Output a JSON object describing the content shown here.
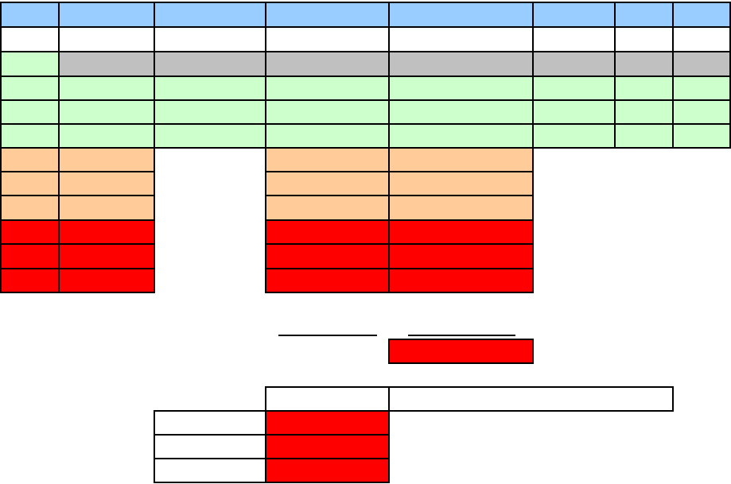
{
  "colors": {
    "header": "#99ccff",
    "white": "#ffffff",
    "gray": "#c0c0c0",
    "green": "#ccffcc",
    "orange": "#ffcc99",
    "red": "#ff0000"
  },
  "sheet": {
    "rows": [
      {
        "fill": "header",
        "cells": [
          "",
          "",
          "",
          "",
          "",
          "",
          "",
          ""
        ]
      },
      {
        "fill": "white",
        "cells": [
          "",
          "",
          "",
          "",
          "",
          "",
          "",
          ""
        ]
      },
      {
        "fill": "gray",
        "first_fill": "green",
        "cells": [
          "",
          "",
          "",
          "",
          "",
          "",
          "",
          ""
        ]
      },
      {
        "fill": "green",
        "cells": [
          "",
          "",
          "",
          "",
          "",
          "",
          "",
          ""
        ]
      },
      {
        "fill": "green",
        "cells": [
          "",
          "",
          "",
          "",
          "",
          "",
          "",
          ""
        ]
      },
      {
        "fill": "green",
        "cells": [
          "",
          "",
          "",
          "",
          "",
          "",
          "",
          ""
        ]
      },
      {
        "fill": "orange",
        "cells": [
          "",
          "",
          "",
          "",
          ""
        ]
      },
      {
        "fill": "orange",
        "cells": [
          "",
          "",
          "",
          "",
          ""
        ]
      },
      {
        "fill": "orange",
        "cells": [
          "",
          "",
          "",
          "",
          ""
        ]
      },
      {
        "fill": "red",
        "cells": [
          "",
          "",
          "",
          "",
          ""
        ]
      },
      {
        "fill": "red",
        "cells": [
          "",
          "",
          "",
          "",
          ""
        ]
      },
      {
        "fill": "red",
        "cells": [
          "",
          "",
          "",
          "",
          ""
        ]
      }
    ]
  },
  "summary": {
    "underline_labels": [
      "",
      ""
    ],
    "result_cell": ""
  },
  "lower_table": {
    "header_cells": [
      "",
      ""
    ],
    "rows": [
      {
        "label": "",
        "value": ""
      },
      {
        "label": "",
        "value": ""
      },
      {
        "label": "",
        "value": ""
      }
    ]
  }
}
